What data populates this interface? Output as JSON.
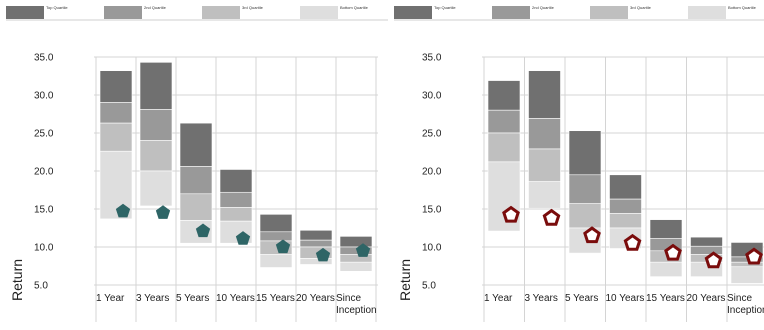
{
  "colors": {
    "top_quartile": "#707070",
    "second_quartile": "#999999",
    "third_quartile": "#bfbfbf",
    "bottom_quartile": "#dedede",
    "gridline": "#d4d4d4",
    "marker_left_fill": "#2e6566",
    "marker_right_stroke": "#7a0c0c"
  },
  "legend": {
    "items": [
      "Top Quartile",
      "2nd Quartile",
      "3rd Quartile",
      "Bottom Quartile"
    ]
  },
  "chart_data": [
    {
      "type": "bar",
      "title": "",
      "ylabel": "Return",
      "ylim": [
        5.0,
        35.0
      ],
      "yticks": [
        "35.0",
        "30.0",
        "25.0",
        "20.0",
        "15.0",
        "10.0",
        "5.0"
      ],
      "categories": [
        "1 Year",
        "3 Years",
        "5 Years",
        "10 Years",
        "15 Years",
        "20 Years",
        [
          "Since",
          "Inception"
        ]
      ],
      "quartile_boundaries": [
        [
          33.2,
          29.0,
          26.3,
          22.6,
          13.7
        ],
        [
          34.3,
          28.1,
          24.0,
          20.0,
          15.4
        ],
        [
          26.3,
          20.6,
          17.0,
          13.5,
          10.5
        ],
        [
          20.2,
          17.2,
          15.2,
          13.4,
          10.5
        ],
        [
          14.3,
          12.0,
          10.8,
          9.0,
          7.3
        ],
        [
          12.2,
          10.9,
          10.0,
          8.5,
          7.7
        ],
        [
          11.4,
          10.0,
          9.0,
          8.0,
          6.8
        ]
      ],
      "marker_shape": "filled-pentagon",
      "marker_values": [
        14.7,
        14.5,
        12.1,
        11.1,
        10.0,
        8.9,
        9.5
      ]
    },
    {
      "type": "bar",
      "title": "",
      "ylabel": "Return",
      "ylim": [
        5.0,
        35.0
      ],
      "yticks": [
        "35.0",
        "30.0",
        "25.0",
        "20.0",
        "15.0",
        "10.0",
        "5.0"
      ],
      "categories": [
        "1 Year",
        "3 Years",
        "5 Years",
        "10 Years",
        "15 Years",
        "20 Years",
        [
          "Since",
          "Inception"
        ]
      ],
      "quartile_boundaries": [
        [
          31.9,
          28.0,
          25.0,
          21.2,
          12.1
        ],
        [
          33.2,
          26.9,
          22.9,
          18.6,
          15.1
        ],
        [
          25.3,
          19.5,
          15.7,
          12.5,
          9.2
        ],
        [
          19.5,
          16.3,
          14.4,
          12.5,
          9.8
        ],
        [
          13.6,
          11.1,
          9.5,
          8.0,
          6.1
        ],
        [
          11.3,
          10.1,
          9.0,
          8.0,
          6.1
        ],
        [
          10.6,
          8.7,
          8.0,
          7.4,
          5.2
        ]
      ],
      "marker_shape": "hollow-pentagon",
      "marker_values": [
        14.2,
        13.8,
        11.5,
        10.5,
        9.2,
        8.2,
        8.7
      ]
    }
  ]
}
